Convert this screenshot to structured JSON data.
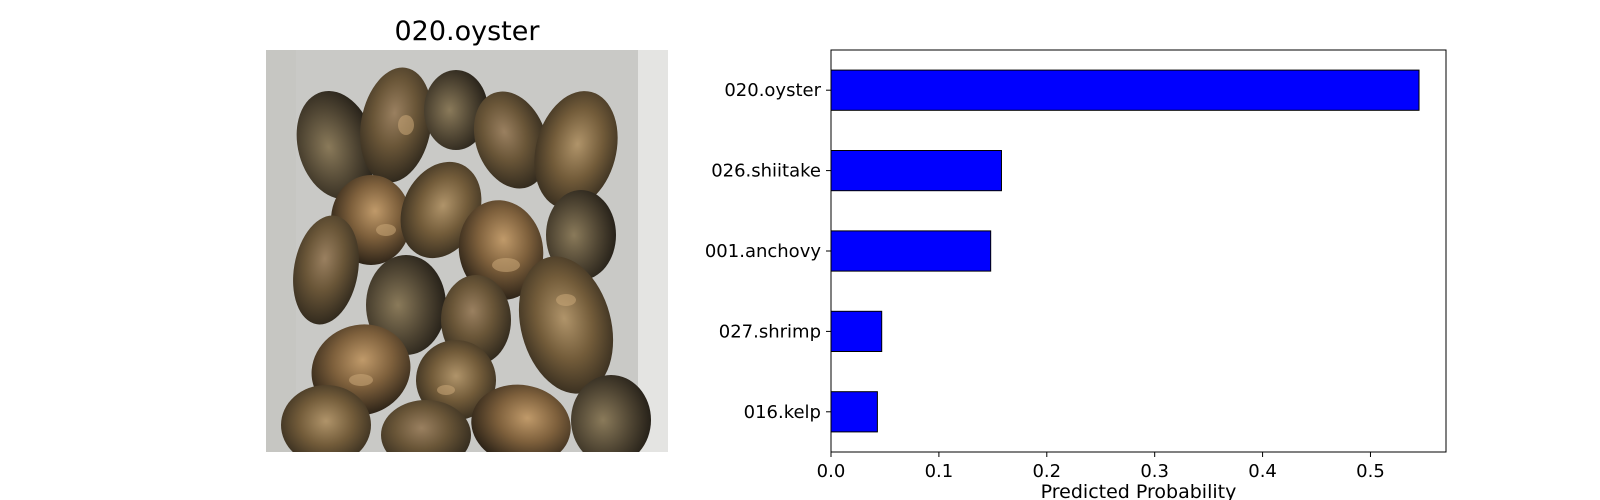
{
  "image_title": "020.oyster",
  "colors": {
    "bar_fill": "#0000ff",
    "bar_edge": "#000000"
  },
  "chart_data": {
    "type": "bar",
    "orientation": "horizontal",
    "categories": [
      "020.oyster",
      "026.shiitake",
      "001.anchovy",
      "027.shrimp",
      "016.kelp"
    ],
    "values": [
      0.545,
      0.158,
      0.148,
      0.047,
      0.043
    ],
    "title": "",
    "xlabel": "Predicted Probability",
    "ylabel": "",
    "xlim": [
      0,
      0.57
    ],
    "xticks": [
      0.0,
      0.1,
      0.2,
      0.3,
      0.4,
      0.5
    ],
    "xtick_labels": [
      "0.0",
      "0.1",
      "0.2",
      "0.3",
      "0.4",
      "0.5"
    ],
    "grid": false,
    "legend": "none"
  }
}
